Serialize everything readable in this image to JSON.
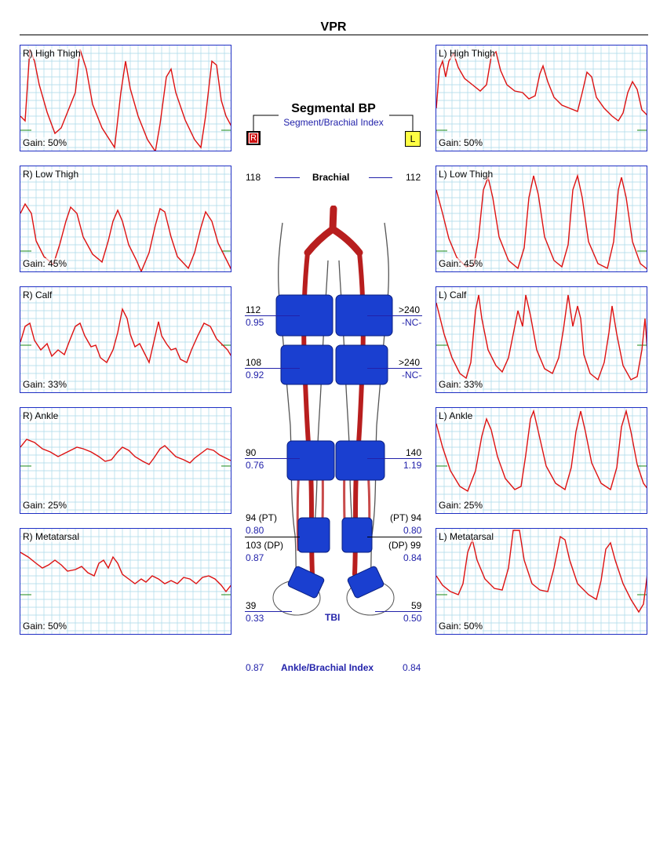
{
  "page_title": "VPR",
  "segmental": {
    "title": "Segmental BP",
    "subtitle": "Segment/Brachial Index",
    "right_badge": "R",
    "left_badge": "L"
  },
  "brachial": {
    "label": "Brachial",
    "right": "118",
    "left": "112"
  },
  "measurements": {
    "high_thigh": {
      "right_bp": "112",
      "right_idx": "0.95",
      "left_bp": ">240",
      "left_idx": "-NC-"
    },
    "low_thigh": {
      "right_bp": "108",
      "right_idx": "0.92",
      "left_bp": ">240",
      "left_idx": "-NC-"
    },
    "calf": {
      "right_bp": "90",
      "right_idx": "0.76",
      "left_bp": "140",
      "left_idx": "1.19"
    },
    "ankle_pt": {
      "right_bp": "94 (PT)",
      "right_idx": "0.80",
      "left_bp": "(PT) 94",
      "left_idx": "0.80"
    },
    "ankle_dp": {
      "right_bp": "103 (DP)",
      "right_idx": "0.87",
      "left_bp": "(DP) 99",
      "left_idx": "0.84"
    },
    "toe": {
      "right_bp": "39",
      "right_idx": "0.33",
      "left_bp": "59",
      "left_idx": "0.50",
      "label": "TBI"
    }
  },
  "abi": {
    "label": "Ankle/Brachial Index",
    "right": "0.87",
    "left": "0.84"
  },
  "waveforms": {
    "right": [
      {
        "label": "R) High Thigh",
        "gain": "Gain: 50%"
      },
      {
        "label": "R) Low Thigh",
        "gain": "Gain: 45%"
      },
      {
        "label": "R) Calf",
        "gain": "Gain: 33%"
      },
      {
        "label": "R) Ankle",
        "gain": "Gain: 25%"
      },
      {
        "label": "R) Metatarsal",
        "gain": "Gain: 50%"
      }
    ],
    "left": [
      {
        "label": "L) High Thigh",
        "gain": "Gain: 50%"
      },
      {
        "label": "L) Low Thigh",
        "gain": "Gain: 45%"
      },
      {
        "label": "L) Calf",
        "gain": "Gain: 33%"
      },
      {
        "label": "L) Ankle",
        "gain": "Gain: 25%"
      },
      {
        "label": "L) Metatarsal",
        "gain": "Gain: 50%"
      }
    ]
  },
  "colors": {
    "trace": "#dd1111",
    "grid": "#a8d8e8",
    "border": "#1f2fc4",
    "cuff": "#1a3fd0",
    "artery": "#b81e1e",
    "index_text": "#2222aa"
  }
}
